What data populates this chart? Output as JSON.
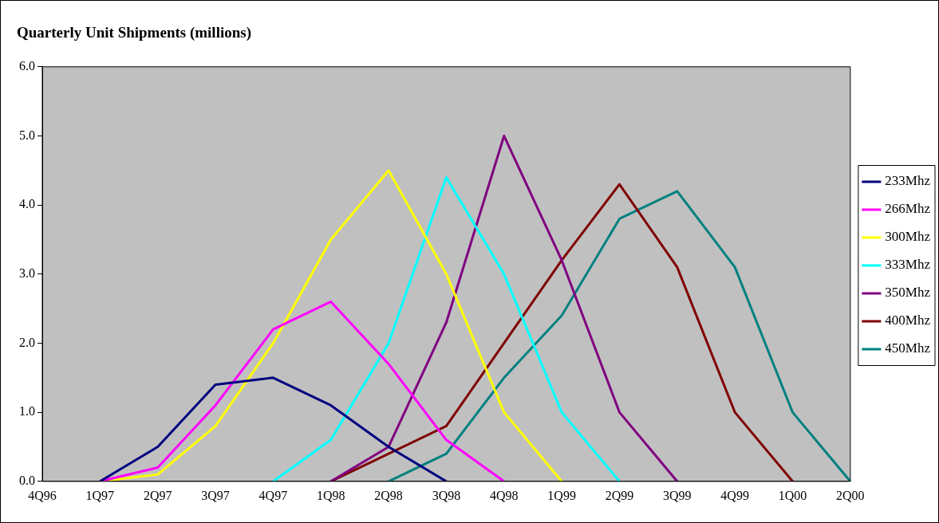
{
  "chart_data": {
    "type": "line",
    "title": "Quarterly Unit Shipments (millions)",
    "categories": [
      "4Q96",
      "1Q97",
      "2Q97",
      "3Q97",
      "4Q97",
      "1Q98",
      "2Q98",
      "3Q98",
      "4Q98",
      "1Q99",
      "2Q99",
      "3Q99",
      "4Q99",
      "1Q00",
      "2Q00"
    ],
    "series": [
      {
        "name": "233Mhz",
        "color": "#000080",
        "values": [
          null,
          0,
          0.5,
          1.4,
          1.5,
          1.1,
          0.5,
          0,
          null,
          null,
          null,
          null,
          null,
          null,
          null
        ]
      },
      {
        "name": "266Mhz",
        "color": "#ff00ff",
        "values": [
          null,
          0,
          0.2,
          1.1,
          2.2,
          2.6,
          1.7,
          0.6,
          0,
          null,
          null,
          null,
          null,
          null,
          null
        ]
      },
      {
        "name": "300Mhz",
        "color": "#ffff00",
        "values": [
          null,
          0,
          0.1,
          0.8,
          2.0,
          3.5,
          4.5,
          3.0,
          1.0,
          0,
          null,
          null,
          null,
          null,
          null
        ]
      },
      {
        "name": "333Mhz",
        "color": "#00ffff",
        "values": [
          null,
          null,
          null,
          null,
          0,
          0.6,
          2.0,
          4.4,
          3.0,
          1.0,
          0,
          null,
          null,
          null,
          null
        ]
      },
      {
        "name": "350Mhz",
        "color": "#800080",
        "values": [
          null,
          null,
          null,
          null,
          null,
          0,
          0.5,
          2.3,
          5.0,
          3.2,
          1.0,
          0,
          null,
          null,
          null
        ]
      },
      {
        "name": "400Mhz",
        "color": "#800000",
        "values": [
          null,
          null,
          null,
          null,
          null,
          0,
          0.4,
          0.8,
          2.0,
          3.2,
          4.3,
          3.1,
          1.0,
          0,
          null
        ]
      },
      {
        "name": "450Mhz",
        "color": "#008080",
        "values": [
          null,
          null,
          null,
          null,
          null,
          null,
          0,
          0.4,
          1.5,
          2.4,
          3.8,
          4.2,
          3.1,
          1.0,
          0
        ]
      }
    ],
    "ylim": [
      0,
      6
    ],
    "yticks": [
      {
        "value": 0,
        "label": "0.0"
      },
      {
        "value": 1,
        "label": "1.0"
      },
      {
        "value": 2,
        "label": "2.0"
      },
      {
        "value": 3,
        "label": "3.0"
      },
      {
        "value": 4,
        "label": "4.0"
      },
      {
        "value": 5,
        "label": "5.0"
      },
      {
        "value": 6,
        "label": "6.0"
      }
    ],
    "grid": false,
    "legend": "right",
    "marker": "none",
    "line_style": "solid"
  }
}
